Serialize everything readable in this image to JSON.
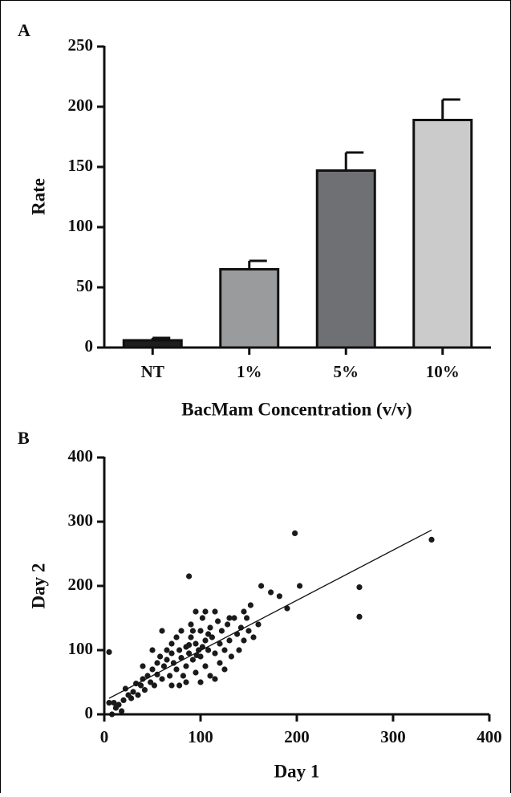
{
  "chart_data": [
    {
      "type": "bar",
      "panel": "A",
      "x_label": "BacMam Concentration (v/v)",
      "y_label": "Rate",
      "categories": [
        "NT",
        "1%",
        "5%",
        "10%"
      ],
      "values": [
        6,
        65,
        147,
        189
      ],
      "errors": [
        2,
        7,
        15,
        17
      ],
      "colors": [
        "#1e1e1e",
        "#9a9b9d",
        "#6e7073",
        "#cbcbcb"
      ],
      "ylim": [
        0,
        250
      ],
      "yticks": [
        0,
        50,
        100,
        150,
        200,
        250
      ]
    },
    {
      "type": "scatter",
      "panel": "B",
      "x_label": "Day 1",
      "y_label": "Day 2",
      "color": "#1a1a1a",
      "x": [
        5,
        88,
        198,
        340,
        265,
        265,
        203,
        190,
        182,
        173,
        163,
        152,
        145,
        160,
        8,
        10,
        5,
        12,
        15,
        20,
        18,
        25,
        22,
        28,
        30,
        35,
        33,
        38,
        40,
        42,
        45,
        48,
        50,
        52,
        55,
        55,
        58,
        60,
        62,
        65,
        65,
        68,
        70,
        70,
        72,
        75,
        75,
        78,
        80,
        80,
        82,
        85,
        85,
        88,
        90,
        90,
        92,
        95,
        95,
        98,
        100,
        100,
        102,
        105,
        105,
        108,
        110,
        110,
        112,
        115,
        118,
        120,
        120,
        122,
        125,
        128,
        130,
        132,
        135,
        138,
        140,
        142,
        145,
        148,
        150,
        155,
        60,
        70,
        85,
        95,
        105,
        115,
        125,
        130,
        50,
        40,
        115,
        100,
        78,
        92,
        102,
        96,
        88,
        108
      ],
      "values": [
        97,
        215,
        282,
        272,
        198,
        152,
        200,
        165,
        184,
        190,
        200,
        170,
        160,
        140,
        0,
        18,
        18,
        10,
        15,
        22,
        5,
        30,
        40,
        25,
        35,
        30,
        48,
        45,
        55,
        38,
        60,
        50,
        70,
        45,
        80,
        62,
        90,
        55,
        75,
        100,
        85,
        60,
        95,
        110,
        80,
        120,
        70,
        100,
        88,
        130,
        60,
        105,
        75,
        95,
        120,
        140,
        85,
        110,
        65,
        100,
        130,
        90,
        150,
        115,
        75,
        100,
        135,
        60,
        120,
        95,
        145,
        110,
        80,
        130,
        100,
        140,
        115,
        90,
        150,
        125,
        100,
        135,
        115,
        150,
        130,
        120,
        130,
        45,
        50,
        160,
        160,
        55,
        70,
        150,
        100,
        75,
        160,
        50,
        45,
        130,
        105,
        92,
        108,
        125
      ],
      "fit": {
        "x": [
          5,
          340
        ],
        "y": [
          25,
          287
        ]
      },
      "xlim": [
        0,
        400
      ],
      "xticks": [
        0,
        100,
        200,
        300,
        400
      ],
      "ylim": [
        0,
        400
      ],
      "yticks": [
        0,
        100,
        200,
        300,
        400
      ]
    }
  ]
}
